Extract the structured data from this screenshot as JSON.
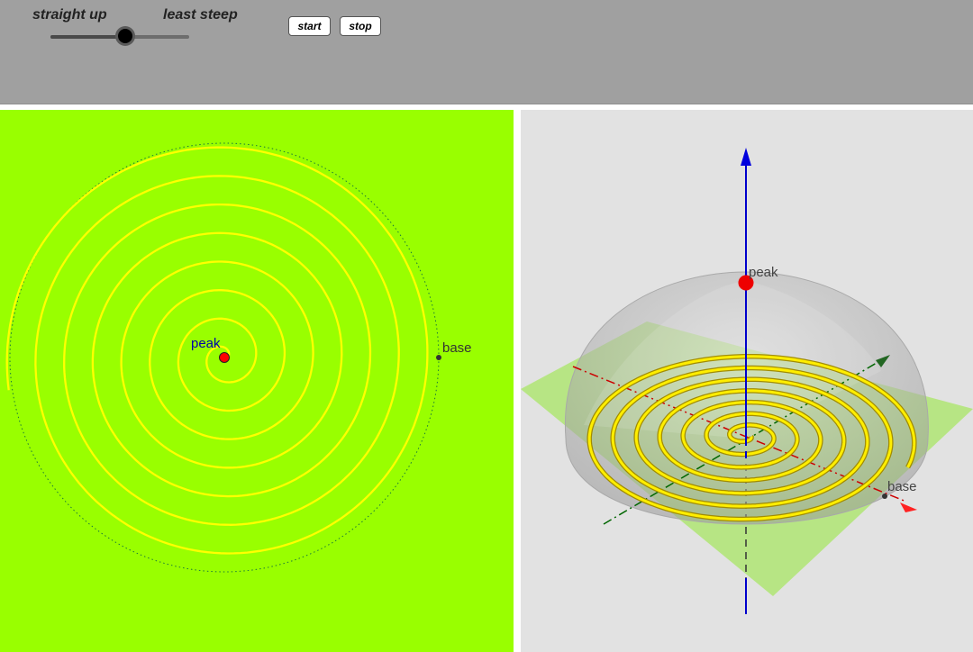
{
  "toolbar": {
    "slider": {
      "left_label": "straight up",
      "right_label": "least steep",
      "value": 0.54
    },
    "start_label": "start",
    "stop_label": "stop"
  },
  "view2d": {
    "background": "#99ff00",
    "spiral_color": "#ffff00",
    "peak_label": "peak",
    "base_label": "base",
    "peak_color": "#ff0000"
  },
  "view3d": {
    "background": "#e2e2e2",
    "peak_label": "peak",
    "base_label": "base",
    "z_axis_color": "#0000cc",
    "x_axis_color": "#cc0000",
    "y_axis_color": "#006600",
    "plane_color": "#b3e67a"
  }
}
